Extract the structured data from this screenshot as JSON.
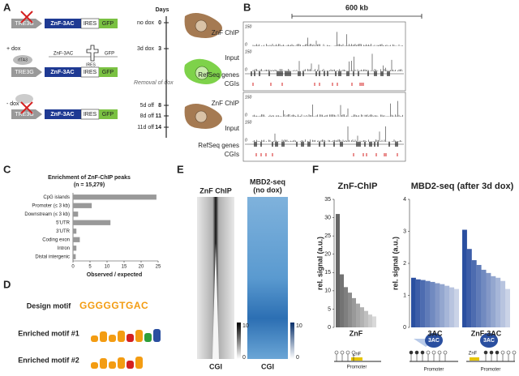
{
  "panels": {
    "A": {
      "letter": "A",
      "days_title": "Days",
      "timeline": [
        {
          "day": "0",
          "label": "no dox"
        },
        {
          "day": "3",
          "label": "3d dox"
        },
        {
          "day": "8",
          "label": "5d off"
        },
        {
          "day": "11",
          "label": "8d off"
        },
        {
          "day": "14",
          "label": "11d off"
        }
      ],
      "construct": {
        "promoter": "TRE3G",
        "gene": "ZnF-3AC",
        "ires": "IRES",
        "reporter": "GFP"
      },
      "plus_dox": "+ dox",
      "activator": "rtTA3",
      "transcript": "ZnF-3AC",
      "transcript_ires": "IRES",
      "transcript_gfp": "GFP",
      "minus_dox": "- dox",
      "removal": "Removal of dox"
    },
    "B": {
      "letter": "B",
      "scale": "600 kb",
      "tracks": [
        {
          "chip": "ZnF ChIP",
          "input": "Input",
          "max": "150",
          "min": "0",
          "genes": "RefSeq genes",
          "cgis": "CGIs"
        },
        {
          "chip": "ZnF ChIP",
          "input": "Input",
          "max": "150",
          "min": "0",
          "genes": "RefSeq genes",
          "cgis": "CGIs"
        }
      ]
    },
    "C": {
      "letter": "C",
      "chart": {
        "type": "bar",
        "orientation": "horizontal",
        "title": "Enrichment of ZnF-ChIP peaks",
        "subtitle": "(n = 15,279)",
        "categories": [
          "CpG islands",
          "Promoter (≤ 3 kb)",
          "Downstream (≤ 3 kb)",
          "5'UTR",
          "3'UTR",
          "Coding exon",
          "Intron",
          "Distal intergenic"
        ],
        "values": [
          24.5,
          5.5,
          1.5,
          11,
          1,
          2,
          1,
          0.8
        ],
        "color": "#999999",
        "xlim": [
          0,
          25
        ],
        "xticks": [
          0,
          5,
          10,
          15,
          20,
          25
        ],
        "xlabel": "Observed / expected"
      }
    },
    "D": {
      "letter": "D",
      "design_label": "Design motif",
      "design_motif": "GGGGGTGAC",
      "motif1_label": "Enriched motif #1",
      "motif2_label": "Enriched motif #2"
    },
    "E": {
      "letter": "E",
      "heatmap1_title": "ZnF ChIP",
      "heatmap2_title": "MBD2-seq",
      "heatmap2_subtitle": "(no dox)",
      "xlabel": "CGI",
      "colorbar_max": "10",
      "colorbar_min": "0"
    },
    "F": {
      "letter": "F",
      "charts": [
        {
          "type": "bar",
          "title": "ZnF-ChIP",
          "ylabel": "rel. signal (a.u.)",
          "ylim": [
            0,
            35
          ],
          "yticks": [
            0,
            5,
            10,
            15,
            20,
            25,
            30,
            35
          ],
          "groups": [
            {
              "name": "ZnF",
              "color": "#666666",
              "values": [
                31,
                14.5,
                11,
                9.5,
                8,
                6.5,
                5.5,
                4.5,
                3.5,
                3
              ]
            }
          ]
        },
        {
          "type": "bar",
          "title": "MBD2-seq (after 3d dox)",
          "ylabel": "rel. signal (a.u.)",
          "ylim": [
            0,
            4
          ],
          "yticks": [
            0,
            1,
            2,
            3,
            4
          ],
          "groups": [
            {
              "name": "3AC",
              "color": "#2a4fa0",
              "values": [
                1.55,
                1.5,
                1.48,
                1.45,
                1.42,
                1.38,
                1.35,
                1.3,
                1.25,
                1.2
              ]
            },
            {
              "name": "ZnF-3AC",
              "color": "#2a4fa0",
              "values": [
                3.05,
                2.45,
                2.1,
                1.95,
                1.8,
                1.7,
                1.6,
                1.55,
                1.45,
                1.2
              ]
            }
          ]
        }
      ],
      "diagram": {
        "znf": "ZnF",
        "promoter": "Promoter",
        "ac": "3AC"
      }
    }
  }
}
